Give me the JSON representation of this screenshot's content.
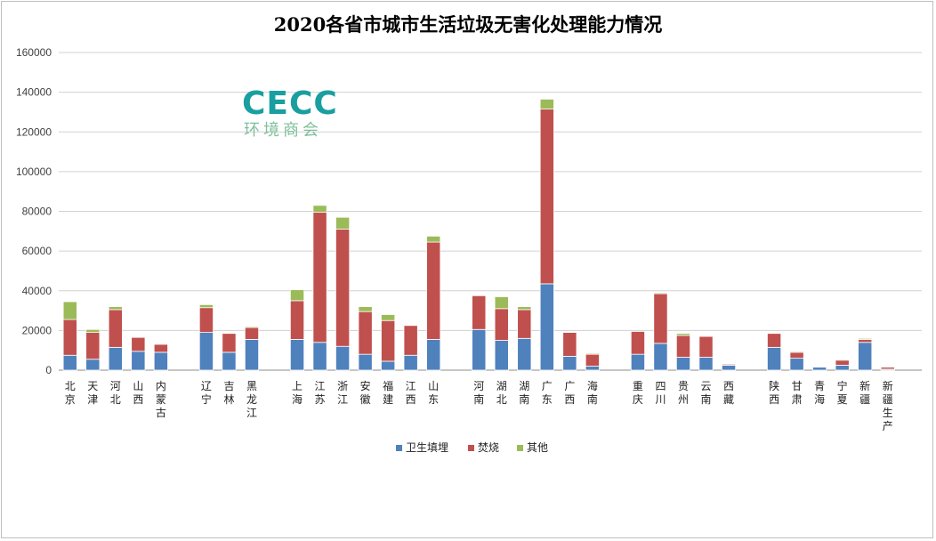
{
  "chart_data": {
    "type": "bar",
    "stacked": true,
    "title": "2020各省市城市生活垃圾无害化处理能力情况",
    "xlabel": "",
    "ylabel": "",
    "ylim": [
      0,
      160000
    ],
    "yticks": [
      "0",
      "20000",
      "40000",
      "60000",
      "80000",
      "100000",
      "120000",
      "140000",
      "160000"
    ],
    "grid": true,
    "legend_position": "bottom",
    "categories": [
      "北京",
      "天津",
      "河北",
      "山西",
      "内蒙古",
      "辽宁",
      "吉林",
      "黑龙江",
      "上海",
      "江苏",
      "浙江",
      "安徽",
      "福建",
      "江西",
      "山东",
      "河南",
      "湖北",
      "湖南",
      "广东",
      "广西",
      "海南",
      "重庆",
      "四川",
      "贵州",
      "云南",
      "西藏",
      "陕西",
      "甘肃",
      "青海",
      "宁夏",
      "新疆",
      "新疆生产"
    ],
    "groups": [
      5,
      3,
      7,
      6,
      5,
      6
    ],
    "series": [
      {
        "name": "卫生填埋",
        "color": "#4f81bd",
        "values": [
          7500,
          5500,
          11500,
          9500,
          9000,
          19000,
          9000,
          15500,
          15500,
          14000,
          12000,
          8000,
          4500,
          7500,
          15500,
          20500,
          15000,
          16000,
          43500,
          7000,
          2000,
          8000,
          13500,
          6500,
          6500,
          2500,
          11500,
          6000,
          1500,
          2500,
          14000,
          500
        ]
      },
      {
        "name": "焚烧",
        "color": "#c0504d",
        "values": [
          18000,
          13500,
          19000,
          7000,
          4000,
          12500,
          9500,
          6000,
          19500,
          65500,
          59000,
          21500,
          20500,
          15000,
          49000,
          17000,
          16000,
          14500,
          88000,
          12000,
          6000,
          11500,
          25000,
          11000,
          10500,
          500,
          7000,
          3000,
          0,
          2500,
          1500,
          1000
        ]
      },
      {
        "name": "其他",
        "color": "#9bbb59",
        "values": [
          9000,
          1500,
          1500,
          0,
          0,
          1500,
          0,
          500,
          5500,
          3500,
          6000,
          2500,
          3000,
          0,
          3000,
          0,
          6000,
          1500,
          5000,
          0,
          500,
          0,
          500,
          1000,
          0,
          0,
          0,
          500,
          0,
          0,
          500,
          0
        ]
      }
    ]
  },
  "logo": {
    "mark": "CECC",
    "subtitle": "环境商会"
  }
}
